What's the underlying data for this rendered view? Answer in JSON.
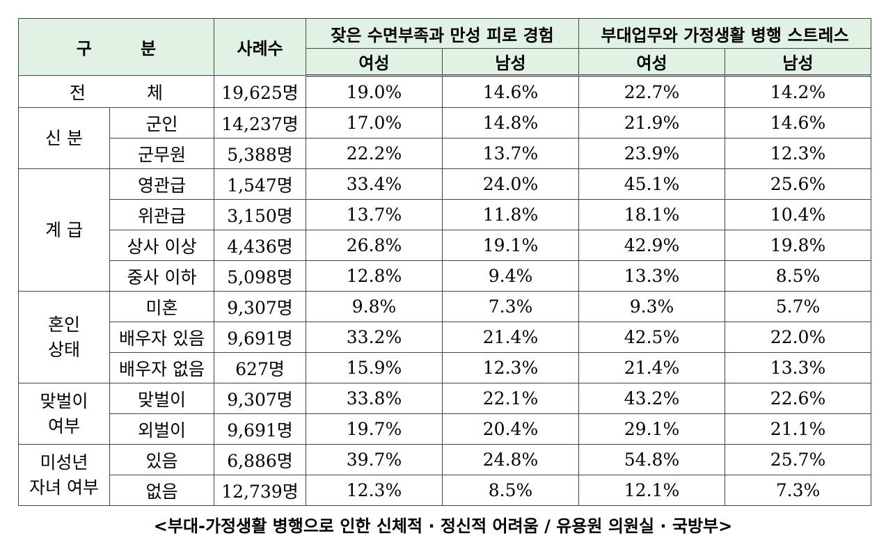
{
  "header": {
    "category_left": "구",
    "category_right": "분",
    "sample_count": "사례수",
    "group1_title": "잦은 수면부족과 만성 피로 경험",
    "group2_title": "부대업무와 가정생활 병행 스트레스",
    "female": "여성",
    "male": "남성"
  },
  "total": {
    "label_left": "전",
    "label_right": "체",
    "count": "19,625명",
    "values": [
      "19.0%",
      "14.6%",
      "22.7%",
      "14.2%"
    ]
  },
  "groups": [
    {
      "label": "신 분",
      "rows": [
        {
          "sub": "군인",
          "count": "14,237명",
          "values": [
            "17.0%",
            "14.8%",
            "21.9%",
            "14.6%"
          ]
        },
        {
          "sub": "군무원",
          "count": "5,388명",
          "values": [
            "22.2%",
            "13.7%",
            "23.9%",
            "12.3%"
          ]
        }
      ]
    },
    {
      "label": "계 급",
      "rows": [
        {
          "sub": "영관급",
          "count": "1,547명",
          "values": [
            "33.4%",
            "24.0%",
            "45.1%",
            "25.6%"
          ]
        },
        {
          "sub": "위관급",
          "count": "3,150명",
          "values": [
            "13.7%",
            "11.8%",
            "18.1%",
            "10.4%"
          ]
        },
        {
          "sub": "상사 이상",
          "count": "4,436명",
          "values": [
            "26.8%",
            "19.1%",
            "42.9%",
            "19.8%"
          ]
        },
        {
          "sub": "중사 이하",
          "count": "5,098명",
          "values": [
            "12.8%",
            "9.4%",
            "13.3%",
            "8.5%"
          ]
        }
      ]
    },
    {
      "label_line1": "혼인",
      "label_line2": "상태",
      "rows": [
        {
          "sub": "미혼",
          "count": "9,307명",
          "values": [
            "9.8%",
            "7.3%",
            "9.3%",
            "5.7%"
          ]
        },
        {
          "sub": "배우자 있음",
          "count": "9,691명",
          "values": [
            "33.2%",
            "21.4%",
            "42.5%",
            "22.0%"
          ]
        },
        {
          "sub": "배우자 없음",
          "count": "627명",
          "values": [
            "15.9%",
            "12.3%",
            "21.4%",
            "13.3%"
          ]
        }
      ]
    },
    {
      "label_line1": "맞벌이",
      "label_line2": "여부",
      "rows": [
        {
          "sub": "맞벌이",
          "count": "9,307명",
          "values": [
            "33.8%",
            "22.1%",
            "43.2%",
            "22.6%"
          ]
        },
        {
          "sub": "외벌이",
          "count": "9,691명",
          "values": [
            "19.7%",
            "20.4%",
            "29.1%",
            "21.1%"
          ]
        }
      ]
    },
    {
      "label_line1": "미성년",
      "label_line2": "자녀 여부",
      "rows": [
        {
          "sub": "있음",
          "count": "6,886명",
          "values": [
            "39.7%",
            "24.8%",
            "54.8%",
            "25.7%"
          ]
        },
        {
          "sub": "없음",
          "count": "12,739명",
          "values": [
            "12.3%",
            "8.5%",
            "12.1%",
            "7.3%"
          ]
        }
      ]
    }
  ],
  "caption": "<부대-가정생활 병행으로 인한 신체적 · 정신적 어려움 / 유용원 의원실 · 국방부>",
  "colors": {
    "header_bg": "#dff2e4",
    "border": "#444444"
  }
}
